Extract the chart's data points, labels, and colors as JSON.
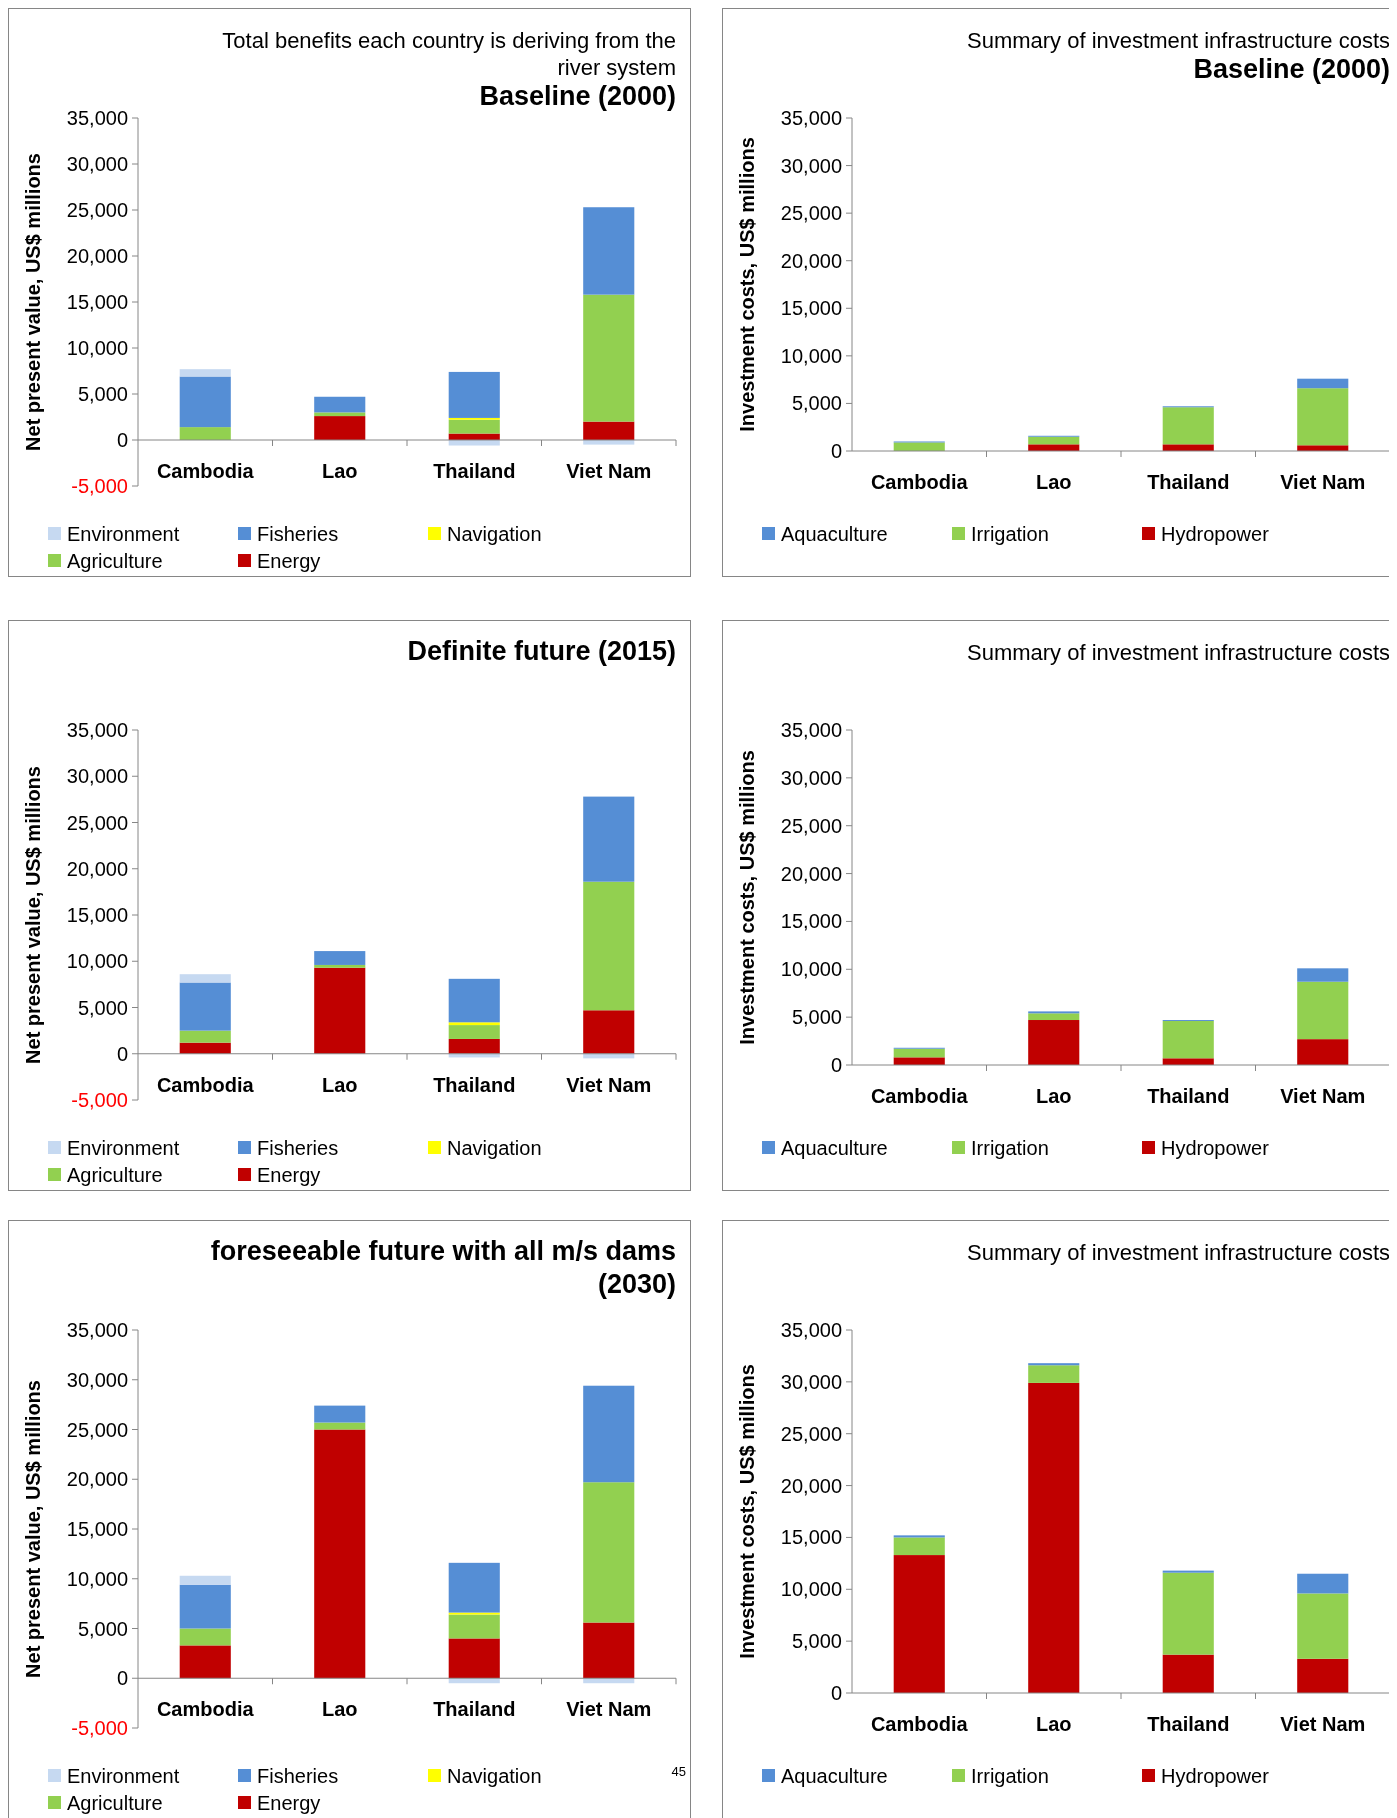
{
  "chart_data": [
    {
      "type": "bar",
      "stacked": true,
      "title": "Total benefits each country is deriving from the river system",
      "subtitle": "Baseline (2000)",
      "ylabel": "Net present value, US$ millions",
      "categories": [
        "Cambodia",
        "Lao",
        "Thailand",
        "Viet Nam"
      ],
      "ylim": [
        -5000,
        35000
      ],
      "yticks": [
        {
          "value": -5000,
          "label": "-5,000"
        },
        {
          "value": 0,
          "label": "0"
        },
        {
          "value": 5000,
          "label": "5,000"
        },
        {
          "value": 10000,
          "label": "10,000"
        },
        {
          "value": 15000,
          "label": "15,000"
        },
        {
          "value": 20000,
          "label": "20,000"
        },
        {
          "value": 25000,
          "label": "25,000"
        },
        {
          "value": 30000,
          "label": "30,000"
        },
        {
          "value": 35000,
          "label": "35,000"
        }
      ],
      "legend": "bottom",
      "grid": false,
      "series": [
        {
          "name": "Energy",
          "color": "#c00000",
          "values": [
            0,
            2600,
            700,
            2000
          ]
        },
        {
          "name": "Agriculture",
          "color": "#92d050",
          "values": [
            1400,
            400,
            1500,
            13800
          ]
        },
        {
          "name": "Navigation",
          "color": "#ffff00",
          "values": [
            0,
            0,
            200,
            0
          ]
        },
        {
          "name": "Fisheries",
          "color": "#558ed5",
          "values": [
            5500,
            1700,
            5000,
            9500
          ]
        },
        {
          "name": "Environment",
          "color": "#c6d9f1",
          "values": [
            800,
            0,
            -600,
            -500
          ]
        }
      ]
    },
    {
      "type": "bar",
      "stacked": true,
      "title": "Summary of investment infrastructure costs",
      "subtitle": "Baseline (2000)",
      "ylabel": "Investment costs, US$ millions",
      "categories": [
        "Cambodia",
        "Lao",
        "Thailand",
        "Viet Nam"
      ],
      "ylim": [
        0,
        35000
      ],
      "yticks": [
        {
          "value": 0,
          "label": "0"
        },
        {
          "value": 5000,
          "label": "5,000"
        },
        {
          "value": 10000,
          "label": "10,000"
        },
        {
          "value": 15000,
          "label": "15,000"
        },
        {
          "value": 20000,
          "label": "20,000"
        },
        {
          "value": 25000,
          "label": "25,000"
        },
        {
          "value": 30000,
          "label": "30,000"
        },
        {
          "value": 35000,
          "label": "35,000"
        }
      ],
      "legend": "bottom",
      "grid": false,
      "series": [
        {
          "name": "Hydropower",
          "color": "#c00000",
          "values": [
            null,
            700,
            700,
            600
          ]
        },
        {
          "name": "Irrigation",
          "color": "#92d050",
          "values": [
            900,
            800,
            3900,
            6000
          ]
        },
        {
          "name": "Aquaculture",
          "color": "#558ed5",
          "values": [
            100,
            100,
            100,
            1000
          ]
        }
      ]
    },
    {
      "type": "bar",
      "stacked": true,
      "subtitle": "Definite future (2015)",
      "ylabel": "Net present value, US$ millions",
      "categories": [
        "Cambodia",
        "Lao",
        "Thailand",
        "Viet Nam"
      ],
      "ylim": [
        -5000,
        35000
      ],
      "yticks": [
        {
          "value": -5000,
          "label": "-5,000"
        },
        {
          "value": 0,
          "label": "0"
        },
        {
          "value": 5000,
          "label": "5,000"
        },
        {
          "value": 10000,
          "label": "10,000"
        },
        {
          "value": 15000,
          "label": "15,000"
        },
        {
          "value": 20000,
          "label": "20,000"
        },
        {
          "value": 25000,
          "label": "25,000"
        },
        {
          "value": 30000,
          "label": "30,000"
        },
        {
          "value": 35000,
          "label": "35,000"
        }
      ],
      "legend": "bottom",
      "grid": false,
      "series": [
        {
          "name": "Energy",
          "color": "#c00000",
          "values": [
            1200,
            9300,
            1600,
            4700
          ]
        },
        {
          "name": "Agriculture",
          "color": "#92d050",
          "values": [
            1300,
            300,
            1500,
            13900
          ]
        },
        {
          "name": "Navigation",
          "color": "#ffff00",
          "values": [
            0,
            0,
            300,
            0
          ]
        },
        {
          "name": "Fisheries",
          "color": "#558ed5",
          "values": [
            5200,
            1500,
            4700,
            9200
          ]
        },
        {
          "name": "Environment",
          "color": "#c6d9f1",
          "values": [
            900,
            0,
            -400,
            -500
          ]
        }
      ]
    },
    {
      "type": "bar",
      "stacked": true,
      "title": "Summary of investment infrastructure costs",
      "ylabel": "Investment costs, US$ millions",
      "categories": [
        "Cambodia",
        "Lao",
        "Thailand",
        "Viet Nam"
      ],
      "ylim": [
        0,
        35000
      ],
      "yticks": [
        {
          "value": 0,
          "label": "0"
        },
        {
          "value": 5000,
          "label": "5,000"
        },
        {
          "value": 10000,
          "label": "10,000"
        },
        {
          "value": 15000,
          "label": "15,000"
        },
        {
          "value": 20000,
          "label": "20,000"
        },
        {
          "value": 25000,
          "label": "25,000"
        },
        {
          "value": 30000,
          "label": "30,000"
        },
        {
          "value": 35000,
          "label": "35,000"
        }
      ],
      "legend": "bottom",
      "grid": false,
      "series": [
        {
          "name": "Hydropower",
          "color": "#c00000",
          "values": [
            800,
            4700,
            700,
            2700
          ]
        },
        {
          "name": "Irrigation",
          "color": "#92d050",
          "values": [
            900,
            700,
            3900,
            6000
          ]
        },
        {
          "name": "Aquaculture",
          "color": "#558ed5",
          "values": [
            100,
            200,
            100,
            1400
          ]
        }
      ]
    },
    {
      "type": "bar",
      "stacked": true,
      "subtitle": "foreseeable future with all m/s dams (2030)",
      "ylabel": "Net present value, US$ millions",
      "categories": [
        "Cambodia",
        "Lao",
        "Thailand",
        "Viet Nam"
      ],
      "ylim": [
        -5000,
        35000
      ],
      "yticks": [
        {
          "value": -5000,
          "label": "-5,000"
        },
        {
          "value": 0,
          "label": "0"
        },
        {
          "value": 5000,
          "label": "5,000"
        },
        {
          "value": 10000,
          "label": "10,000"
        },
        {
          "value": 15000,
          "label": "15,000"
        },
        {
          "value": 20000,
          "label": "20,000"
        },
        {
          "value": 25000,
          "label": "25,000"
        },
        {
          "value": 30000,
          "label": "30,000"
        },
        {
          "value": 35000,
          "label": "35,000"
        }
      ],
      "legend": "bottom",
      "grid": false,
      "annotations": [
        "45"
      ],
      "series": [
        {
          "name": "Energy",
          "color": "#c00000",
          "values": [
            3300,
            25000,
            4000,
            5600
          ]
        },
        {
          "name": "Agriculture",
          "color": "#92d050",
          "values": [
            1700,
            700,
            2400,
            14100
          ]
        },
        {
          "name": "Navigation",
          "color": "#ffff00",
          "values": [
            0,
            0,
            200,
            0
          ]
        },
        {
          "name": "Fisheries",
          "color": "#558ed5",
          "values": [
            4400,
            1700,
            5000,
            9700
          ]
        },
        {
          "name": "Environment",
          "color": "#c6d9f1",
          "values": [
            900,
            0,
            -500,
            -500
          ]
        }
      ]
    },
    {
      "type": "bar",
      "stacked": true,
      "title": "Summary of investment infrastructure costs",
      "ylabel": "Investment costs, US$ millions",
      "categories": [
        "Cambodia",
        "Lao",
        "Thailand",
        "Viet Nam"
      ],
      "ylim": [
        0,
        35000
      ],
      "yticks": [
        {
          "value": 0,
          "label": "0"
        },
        {
          "value": 5000,
          "label": "5,000"
        },
        {
          "value": 10000,
          "label": "10,000"
        },
        {
          "value": 15000,
          "label": "15,000"
        },
        {
          "value": 20000,
          "label": "20,000"
        },
        {
          "value": 25000,
          "label": "25,000"
        },
        {
          "value": 30000,
          "label": "30,000"
        },
        {
          "value": 35000,
          "label": "35,000"
        }
      ],
      "legend": "bottom",
      "grid": false,
      "series": [
        {
          "name": "Hydropower",
          "color": "#c00000",
          "values": [
            13300,
            29900,
            3700,
            3300
          ]
        },
        {
          "name": "Irrigation",
          "color": "#92d050",
          "values": [
            1700,
            1700,
            7900,
            6300
          ]
        },
        {
          "name": "Aquaculture",
          "color": "#558ed5",
          "values": [
            200,
            200,
            200,
            1900
          ]
        }
      ]
    }
  ]
}
